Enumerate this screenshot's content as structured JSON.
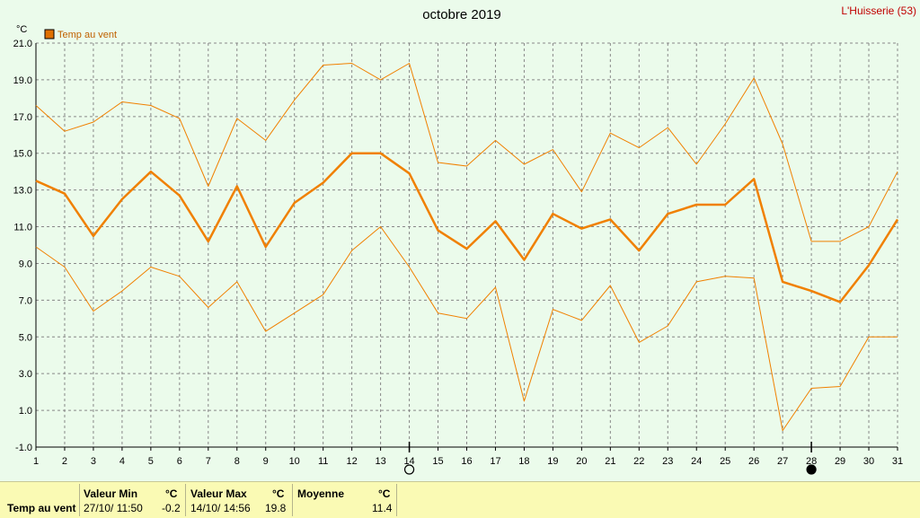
{
  "header": {
    "title": "octobre 2019",
    "station": "L'Huisserie (53)",
    "unit": "°C",
    "legend_label": "Temp au vent",
    "series_color": "#f08000",
    "legend_color": "#e07000"
  },
  "chart_data": {
    "type": "line",
    "title": "octobre 2019",
    "ylabel": "°C",
    "xlabel": "",
    "x": [
      1,
      2,
      3,
      4,
      5,
      6,
      7,
      8,
      9,
      10,
      11,
      12,
      13,
      14,
      15,
      16,
      17,
      18,
      19,
      20,
      21,
      22,
      23,
      24,
      25,
      26,
      27,
      28,
      29,
      30,
      31
    ],
    "x_ticks": [
      "1",
      "2",
      "3",
      "4",
      "5",
      "6",
      "7",
      "8",
      "9",
      "10",
      "11",
      "12",
      "13",
      "14",
      "15",
      "16",
      "17",
      "18",
      "19",
      "20",
      "21",
      "22",
      "23",
      "24",
      "25",
      "26",
      "27",
      "28",
      "29",
      "30",
      "31"
    ],
    "y_ticks": [
      "-1.0",
      "1.0",
      "3.0",
      "5.0",
      "7.0",
      "9.0",
      "11.0",
      "13.0",
      "15.0",
      "17.0",
      "19.0",
      "21.0"
    ],
    "ylim": [
      -1.0,
      21.0
    ],
    "grid": true,
    "legend_position": "top-left",
    "series": [
      {
        "name": "Temp au vent",
        "role": "mean",
        "values": [
          13.5,
          12.8,
          10.5,
          12.5,
          14.0,
          12.7,
          10.2,
          13.2,
          9.9,
          12.3,
          13.4,
          15.0,
          15.0,
          13.9,
          10.8,
          9.8,
          11.3,
          9.2,
          11.7,
          10.9,
          11.4,
          9.7,
          11.7,
          12.2,
          12.2,
          13.6,
          8.0,
          7.5,
          6.9,
          8.9,
          11.4
        ]
      },
      {
        "role": "max",
        "values": [
          17.6,
          16.2,
          16.7,
          17.8,
          17.6,
          16.9,
          13.2,
          16.9,
          15.7,
          17.9,
          19.8,
          19.9,
          19.0,
          19.9,
          14.5,
          14.3,
          15.7,
          14.4,
          15.2,
          12.9,
          16.1,
          15.3,
          16.4,
          14.4,
          16.6,
          19.1,
          15.5,
          10.2,
          10.2,
          11.0,
          14.0
        ]
      },
      {
        "role": "min",
        "values": [
          9.9,
          8.8,
          6.4,
          7.5,
          8.8,
          8.3,
          6.6,
          8.0,
          5.3,
          6.3,
          7.3,
          9.7,
          11.0,
          8.8,
          6.3,
          6.0,
          7.7,
          1.5,
          6.5,
          5.9,
          7.8,
          4.7,
          5.6,
          8.0,
          8.3,
          8.2,
          -0.1,
          2.2,
          2.3,
          5.0,
          5.0
        ]
      }
    ],
    "markers": [
      {
        "x": 14,
        "symbol": "new-moon-outline"
      },
      {
        "x": 28,
        "symbol": "full-moon-filled"
      }
    ]
  },
  "stats": {
    "row_label": "Temp au vent",
    "min": {
      "label": "Valeur Min",
      "unit": "°C",
      "date": "27/10/  11:50",
      "value": "-0.2"
    },
    "max": {
      "label": "Valeur Max",
      "unit": "°C",
      "date": "14/10/  14:56",
      "value": "19.8"
    },
    "avg": {
      "label": "Moyenne",
      "unit": "°C",
      "value": "11.4"
    }
  }
}
